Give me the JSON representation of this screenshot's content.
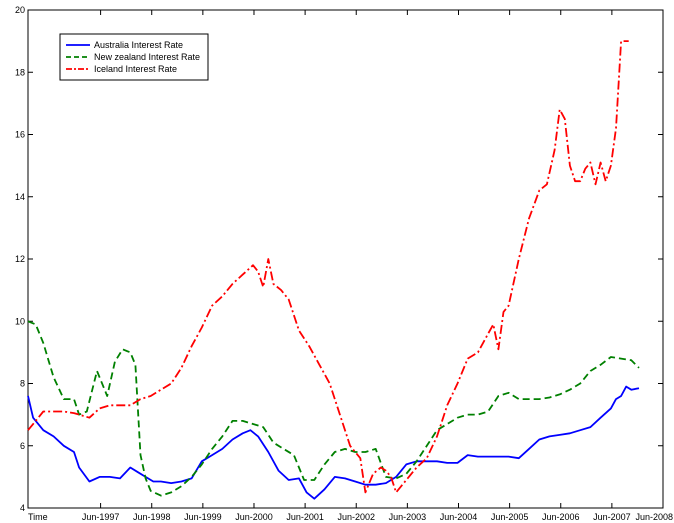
{
  "chart_data": {
    "type": "line",
    "title": "",
    "xlabel": "",
    "ylabel": "",
    "ylim": [
      4,
      20
    ],
    "yticks": [
      4,
      6,
      8,
      10,
      12,
      14,
      16,
      18,
      20
    ],
    "xticks": [
      {
        "label": "Time",
        "x": 1996.0
      },
      {
        "label": "Jun-1997",
        "x": 1997.42
      },
      {
        "label": "Jun-1998",
        "x": 1998.42
      },
      {
        "label": "Jun-1999",
        "x": 1999.42
      },
      {
        "label": "Jun-2000",
        "x": 2000.42
      },
      {
        "label": "Jun-2001",
        "x": 2001.42
      },
      {
        "label": "Jun-2002",
        "x": 2002.42
      },
      {
        "label": "Jun-2003",
        "x": 2003.42
      },
      {
        "label": "Jun-2004",
        "x": 2004.42
      },
      {
        "label": "Jun-2005",
        "x": 2005.42
      },
      {
        "label": "Jun-2006",
        "x": 2006.42
      },
      {
        "label": "Jun-2007",
        "x": 2007.42
      },
      {
        "label": "Jun-2008",
        "x": 2008.42
      }
    ],
    "xlim": [
      1996.0,
      2008.42
    ],
    "grid": false,
    "legend_position": "top-left",
    "series": [
      {
        "name": "Australia Interest Rate",
        "color": "#0000ff",
        "style": "solid",
        "x": [
          1996.0,
          1996.1,
          1996.3,
          1996.5,
          1996.7,
          1996.9,
          1997.0,
          1997.2,
          1997.4,
          1997.6,
          1997.8,
          1998.0,
          1998.15,
          1998.3,
          1998.45,
          1998.6,
          1998.8,
          1999.0,
          1999.2,
          1999.4,
          1999.6,
          1999.8,
          2000.0,
          2000.2,
          2000.35,
          2000.5,
          2000.7,
          2000.9,
          2001.1,
          2001.3,
          2001.45,
          2001.6,
          2001.8,
          2002.0,
          2002.2,
          2002.4,
          2002.6,
          2002.8,
          2003.0,
          2003.2,
          2003.4,
          2003.6,
          2003.8,
          2004.0,
          2004.2,
          2004.4,
          2004.6,
          2004.8,
          2005.0,
          2005.2,
          2005.4,
          2005.6,
          2005.8,
          2006.0,
          2006.2,
          2006.4,
          2006.6,
          2006.8,
          2007.0,
          2007.2,
          2007.4,
          2007.5,
          2007.6,
          2007.7,
          2007.8,
          2007.95
        ],
        "values": [
          7.6,
          6.9,
          6.5,
          6.3,
          6.0,
          5.8,
          5.3,
          4.85,
          5.0,
          5.0,
          4.95,
          5.3,
          5.15,
          5.0,
          4.85,
          4.85,
          4.8,
          4.85,
          4.95,
          5.5,
          5.7,
          5.9,
          6.2,
          6.4,
          6.5,
          6.3,
          5.8,
          5.2,
          4.9,
          4.95,
          4.5,
          4.3,
          4.6,
          5.0,
          4.95,
          4.85,
          4.75,
          4.75,
          4.8,
          5.0,
          5.4,
          5.5,
          5.5,
          5.5,
          5.45,
          5.45,
          5.7,
          5.65,
          5.65,
          5.65,
          5.65,
          5.6,
          5.9,
          6.2,
          6.3,
          6.35,
          6.4,
          6.5,
          6.6,
          6.9,
          7.2,
          7.5,
          7.6,
          7.9,
          7.8,
          7.85
        ]
      },
      {
        "name": "New zealand Interest Rate",
        "color": "#008000",
        "style": "dashed",
        "x": [
          1996.0,
          1996.15,
          1996.3,
          1996.5,
          1996.7,
          1996.9,
          1997.0,
          1997.15,
          1997.35,
          1997.55,
          1997.7,
          1997.85,
          1998.0,
          1998.1,
          1998.2,
          1998.3,
          1998.4,
          1998.6,
          1998.8,
          1999.0,
          1999.2,
          1999.4,
          1999.6,
          1999.8,
          2000.0,
          2000.2,
          2000.4,
          2000.6,
          2000.8,
          2001.0,
          2001.2,
          2001.4,
          2001.6,
          2001.8,
          2002.0,
          2002.2,
          2002.4,
          2002.6,
          2002.8,
          2003.0,
          2003.2,
          2003.4,
          2003.6,
          2003.8,
          2004.0,
          2004.2,
          2004.4,
          2004.6,
          2004.8,
          2005.0,
          2005.2,
          2005.4,
          2005.6,
          2005.8,
          2006.0,
          2006.2,
          2006.4,
          2006.6,
          2006.8,
          2007.0,
          2007.2,
          2007.4,
          2007.6,
          2007.8,
          2007.95
        ],
        "values": [
          10.0,
          9.9,
          9.3,
          8.2,
          7.5,
          7.5,
          7.0,
          7.1,
          8.4,
          7.6,
          8.7,
          9.1,
          9.0,
          8.6,
          5.7,
          4.95,
          4.55,
          4.4,
          4.5,
          4.7,
          5.0,
          5.4,
          5.9,
          6.3,
          6.8,
          6.8,
          6.7,
          6.6,
          6.1,
          5.9,
          5.7,
          4.9,
          4.9,
          5.4,
          5.8,
          5.9,
          5.8,
          5.8,
          5.9,
          5.0,
          4.95,
          5.1,
          5.5,
          6.0,
          6.5,
          6.7,
          6.9,
          7.0,
          7.0,
          7.1,
          7.6,
          7.7,
          7.5,
          7.5,
          7.5,
          7.55,
          7.65,
          7.8,
          8.0,
          8.4,
          8.6,
          8.85,
          8.8,
          8.75,
          8.5
        ]
      },
      {
        "name": "Iceland Interest Rate",
        "color": "#ff0000",
        "style": "dashdot",
        "x": [
          1996.0,
          1996.15,
          1996.3,
          1996.5,
          1996.7,
          1996.9,
          1997.0,
          1997.2,
          1997.4,
          1997.6,
          1997.8,
          1998.0,
          1998.2,
          1998.4,
          1998.6,
          1998.8,
          1999.0,
          1999.2,
          1999.4,
          1999.6,
          1999.8,
          2000.0,
          2000.2,
          2000.4,
          2000.5,
          2000.6,
          2000.7,
          2000.8,
          2000.95,
          2001.1,
          2001.3,
          2001.5,
          2001.7,
          2001.9,
          2002.1,
          2002.3,
          2002.5,
          2002.6,
          2002.75,
          2002.9,
          2003.0,
          2003.1,
          2003.2,
          2003.4,
          2003.6,
          2003.8,
          2004.0,
          2004.2,
          2004.4,
          2004.6,
          2004.8,
          2005.0,
          2005.1,
          2005.2,
          2005.3,
          2005.4,
          2005.6,
          2005.8,
          2006.0,
          2006.15,
          2006.3,
          2006.4,
          2006.5,
          2006.6,
          2006.7,
          2006.8,
          2006.9,
          2007.0,
          2007.1,
          2007.2,
          2007.3,
          2007.4,
          2007.5,
          2007.6,
          2007.7,
          2007.75
        ],
        "values": [
          6.5,
          6.8,
          7.1,
          7.1,
          7.1,
          7.05,
          7.0,
          6.9,
          7.2,
          7.3,
          7.3,
          7.3,
          7.5,
          7.6,
          7.8,
          8.0,
          8.5,
          9.2,
          9.8,
          10.5,
          10.8,
          11.2,
          11.5,
          11.8,
          11.6,
          11.1,
          12.0,
          11.2,
          11.0,
          10.7,
          9.7,
          9.2,
          8.6,
          8.0,
          7.0,
          6.0,
          5.6,
          4.5,
          5.1,
          5.3,
          5.2,
          5.0,
          4.5,
          4.9,
          5.3,
          5.6,
          6.3,
          7.3,
          8.0,
          8.8,
          9.0,
          9.6,
          9.9,
          9.1,
          10.3,
          10.5,
          12.0,
          13.3,
          14.2,
          14.4,
          15.5,
          16.8,
          16.5,
          15.0,
          14.5,
          14.5,
          14.9,
          15.1,
          14.4,
          15.1,
          14.5,
          15.0,
          16.2,
          19.0,
          19.0,
          19.0
        ]
      }
    ]
  }
}
